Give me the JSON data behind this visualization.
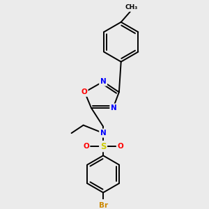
{
  "background_color": "#ebebeb",
  "bond_color": "#000000",
  "atom_colors": {
    "N": "#0000ff",
    "O": "#ff0000",
    "S": "#cccc00",
    "Br": "#cc8800",
    "C": "#000000"
  },
  "figsize": [
    3.0,
    3.0
  ],
  "dpi": 100,
  "bond_lw": 1.4,
  "font_size": 7.5
}
